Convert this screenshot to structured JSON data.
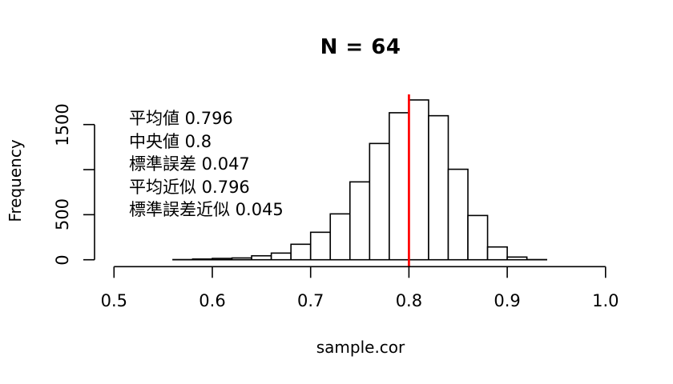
{
  "chart_data": {
    "type": "bar",
    "subtype": "histogram",
    "title": "N = 64",
    "xlabel": "sample.cor",
    "ylabel": "Frequency",
    "xlim": [
      0.5,
      1.0
    ],
    "ylim": [
      0,
      1800
    ],
    "x_ticks": [
      "0.5",
      "0.6",
      "0.7",
      "0.8",
      "0.9",
      "1.0"
    ],
    "y_ticks": [
      "0",
      "500",
      "1000",
      "1500"
    ],
    "y_tick_labels_visible": [
      "0",
      "500",
      "1500"
    ],
    "bin_width": 0.02,
    "bin_edges": [
      0.56,
      0.58,
      0.6,
      0.62,
      0.64,
      0.66,
      0.68,
      0.7,
      0.72,
      0.74,
      0.76,
      0.78,
      0.8,
      0.82,
      0.84,
      0.86,
      0.88,
      0.9,
      0.92,
      0.94
    ],
    "categories": [
      "0.56-0.58",
      "0.58-0.60",
      "0.60-0.62",
      "0.62-0.64",
      "0.64-0.66",
      "0.66-0.68",
      "0.68-0.70",
      "0.70-0.72",
      "0.72-0.74",
      "0.74-0.76",
      "0.76-0.78",
      "0.78-0.80",
      "0.80-0.82",
      "0.82-0.84",
      "0.84-0.86",
      "0.86-0.88",
      "0.88-0.90",
      "0.90-0.92",
      "0.92-0.94"
    ],
    "values": [
      2,
      8,
      15,
      20,
      44,
      74,
      172,
      305,
      509,
      864,
      1290,
      1631,
      1773,
      1598,
      1004,
      491,
      142,
      30,
      2
    ],
    "reference_line": {
      "x": 0.8,
      "color": "#ff0000",
      "orientation": "vertical"
    },
    "annotations": [
      {
        "label": "平均値",
        "value": "0.796"
      },
      {
        "label": "中央値",
        "value": "0.8"
      },
      {
        "label": "標準誤差",
        "value": "0.047"
      },
      {
        "label": "平均近似",
        "value": "0.796"
      },
      {
        "label": "標準誤差近似",
        "value": "0.045"
      }
    ],
    "grid": false,
    "legend": null
  },
  "colors": {
    "bar_fill": "#ffffff",
    "bar_stroke": "#000000",
    "reference_line": "#ff0000",
    "axis": "#000000"
  },
  "labels": {
    "annot_0": "平均値 0.796",
    "annot_1": "中央値 0.8",
    "annot_2": "標準誤差 0.047",
    "annot_3": "平均近似 0.796",
    "annot_4": "標準誤差近似 0.045"
  }
}
